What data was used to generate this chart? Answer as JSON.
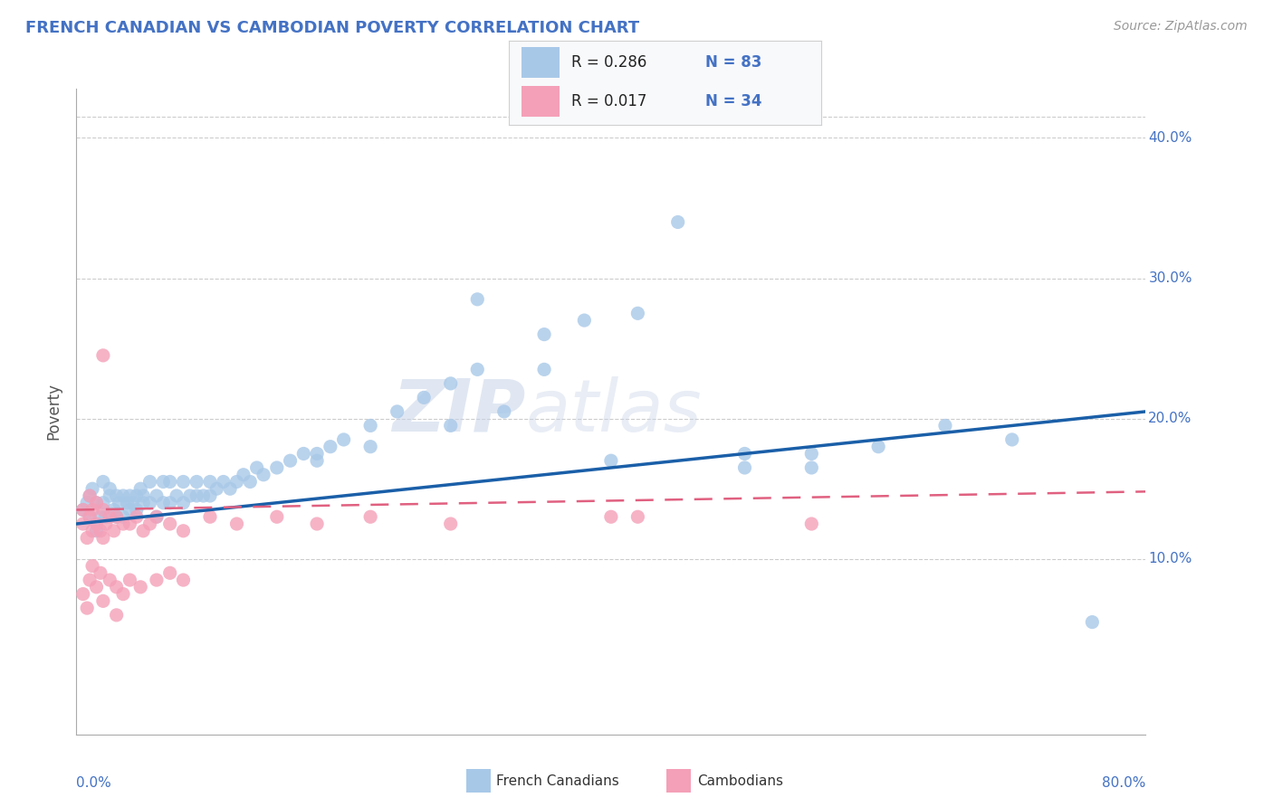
{
  "title": "FRENCH CANADIAN VS CAMBODIAN POVERTY CORRELATION CHART",
  "source": "Source: ZipAtlas.com",
  "ylabel": "Poverty",
  "watermark_zip": "ZIP",
  "watermark_atlas": "atlas",
  "blue_scatter_color": "#a8c8e8",
  "pink_scatter_color": "#f4a0b8",
  "blue_line_color": "#1a5fa8",
  "pink_line_color": "#e06080",
  "title_color": "#4472C4",
  "source_color": "#999999",
  "axis_label_color": "#4472C4",
  "ylabel_color": "#555555",
  "background_color": "#ffffff",
  "grid_color": "#cccccc",
  "xlim": [
    0.0,
    0.8
  ],
  "ylim": [
    -0.025,
    0.435
  ],
  "ytick_positions": [
    0.1,
    0.2,
    0.3,
    0.4
  ],
  "ytick_labels": [
    "10.0%",
    "20.0%",
    "30.0%",
    "40.0%"
  ],
  "fc_x": [
    0.005,
    0.008,
    0.01,
    0.01,
    0.012,
    0.015,
    0.015,
    0.018,
    0.02,
    0.02,
    0.022,
    0.025,
    0.025,
    0.028,
    0.03,
    0.03,
    0.032,
    0.035,
    0.035,
    0.038,
    0.04,
    0.04,
    0.042,
    0.045,
    0.045,
    0.048,
    0.05,
    0.05,
    0.055,
    0.055,
    0.06,
    0.06,
    0.065,
    0.065,
    0.07,
    0.07,
    0.075,
    0.08,
    0.08,
    0.085,
    0.09,
    0.09,
    0.095,
    0.1,
    0.1,
    0.105,
    0.11,
    0.115,
    0.12,
    0.125,
    0.13,
    0.135,
    0.14,
    0.15,
    0.16,
    0.17,
    0.18,
    0.19,
    0.2,
    0.22,
    0.24,
    0.26,
    0.28,
    0.3,
    0.35,
    0.38,
    0.42,
    0.45,
    0.5,
    0.55,
    0.6,
    0.65,
    0.7,
    0.76,
    0.32,
    0.18,
    0.22,
    0.4,
    0.5,
    0.28,
    0.55,
    0.35,
    0.3
  ],
  "fc_y": [
    0.135,
    0.14,
    0.13,
    0.145,
    0.15,
    0.12,
    0.14,
    0.13,
    0.14,
    0.155,
    0.13,
    0.145,
    0.15,
    0.135,
    0.13,
    0.145,
    0.14,
    0.13,
    0.145,
    0.14,
    0.135,
    0.145,
    0.14,
    0.135,
    0.145,
    0.15,
    0.14,
    0.145,
    0.14,
    0.155,
    0.13,
    0.145,
    0.14,
    0.155,
    0.14,
    0.155,
    0.145,
    0.14,
    0.155,
    0.145,
    0.145,
    0.155,
    0.145,
    0.145,
    0.155,
    0.15,
    0.155,
    0.15,
    0.155,
    0.16,
    0.155,
    0.165,
    0.16,
    0.165,
    0.17,
    0.175,
    0.175,
    0.18,
    0.185,
    0.195,
    0.205,
    0.215,
    0.225,
    0.235,
    0.26,
    0.27,
    0.275,
    0.34,
    0.175,
    0.175,
    0.18,
    0.195,
    0.185,
    0.055,
    0.205,
    0.17,
    0.18,
    0.17,
    0.165,
    0.195,
    0.165,
    0.235,
    0.285
  ],
  "cam_x": [
    0.005,
    0.005,
    0.008,
    0.01,
    0.01,
    0.012,
    0.012,
    0.015,
    0.015,
    0.018,
    0.02,
    0.02,
    0.022,
    0.025,
    0.028,
    0.03,
    0.035,
    0.04,
    0.045,
    0.05,
    0.055,
    0.06,
    0.07,
    0.08,
    0.1,
    0.12,
    0.15,
    0.18,
    0.22,
    0.28,
    0.4,
    0.55,
    0.02,
    0.03
  ],
  "cam_y": [
    0.125,
    0.135,
    0.115,
    0.13,
    0.145,
    0.12,
    0.135,
    0.125,
    0.14,
    0.12,
    0.115,
    0.135,
    0.125,
    0.13,
    0.12,
    0.13,
    0.125,
    0.125,
    0.13,
    0.12,
    0.125,
    0.13,
    0.125,
    0.12,
    0.13,
    0.125,
    0.13,
    0.125,
    0.13,
    0.125,
    0.13,
    0.125,
    0.245,
    0.06
  ],
  "cam_extra_x": [
    0.005,
    0.008,
    0.01,
    0.012,
    0.015,
    0.018,
    0.02,
    0.025,
    0.03,
    0.035,
    0.04,
    0.048,
    0.06,
    0.07,
    0.08,
    0.42
  ],
  "cam_extra_y": [
    0.075,
    0.065,
    0.085,
    0.095,
    0.08,
    0.09,
    0.07,
    0.085,
    0.08,
    0.075,
    0.085,
    0.08,
    0.085,
    0.09,
    0.085,
    0.13
  ]
}
